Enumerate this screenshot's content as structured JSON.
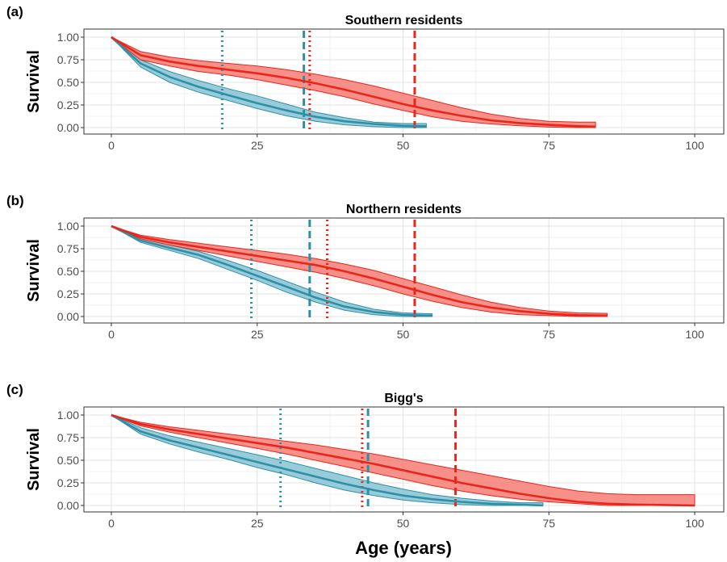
{
  "chart_data": {
    "type": "line",
    "xlabel": "Age (years)",
    "ylabel": "Survival",
    "xlim": [
      0,
      100
    ],
    "ylim": [
      0,
      1
    ],
    "xticks": [
      "0",
      "25",
      "50",
      "75",
      "100"
    ],
    "yticks": [
      "0.00",
      "0.25",
      "0.50",
      "0.75",
      "1.00"
    ],
    "grid": true,
    "colors": {
      "red": "#e8261c",
      "red_band": "#f47c74",
      "blue": "#2f8fa6",
      "blue_band": "#86c3d3"
    },
    "panels": [
      {
        "label": "(a)",
        "title": "Southern residents",
        "series": [
          {
            "color": "red",
            "x": [
              0,
              5,
              10,
              15,
              20,
              25,
              30,
              35,
              40,
              45,
              50,
              55,
              60,
              65,
              70,
              75,
              80,
              83
            ],
            "y": [
              1.0,
              0.8,
              0.73,
              0.68,
              0.64,
              0.6,
              0.55,
              0.49,
              0.42,
              0.34,
              0.26,
              0.19,
              0.13,
              0.08,
              0.05,
              0.03,
              0.015,
              0.01
            ],
            "upper": [
              1.0,
              0.84,
              0.78,
              0.74,
              0.71,
              0.68,
              0.64,
              0.59,
              0.53,
              0.46,
              0.38,
              0.3,
              0.22,
              0.15,
              0.1,
              0.07,
              0.06,
              0.06
            ],
            "lower": [
              1.0,
              0.75,
              0.68,
              0.62,
              0.58,
              0.53,
              0.47,
              0.41,
              0.34,
              0.26,
              0.19,
              0.12,
              0.07,
              0.04,
              0.02,
              0.005,
              0.0,
              0.0
            ]
          },
          {
            "color": "blue",
            "x": [
              0,
              5,
              10,
              15,
              20,
              25,
              30,
              35,
              40,
              45,
              50,
              54
            ],
            "y": [
              1.0,
              0.71,
              0.56,
              0.45,
              0.36,
              0.27,
              0.19,
              0.12,
              0.07,
              0.04,
              0.02,
              0.015
            ],
            "upper": [
              1.0,
              0.75,
              0.62,
              0.52,
              0.43,
              0.35,
              0.26,
              0.17,
              0.11,
              0.06,
              0.045,
              0.045
            ],
            "lower": [
              1.0,
              0.67,
              0.5,
              0.39,
              0.3,
              0.21,
              0.13,
              0.07,
              0.03,
              0.01,
              0.0,
              0.0
            ]
          }
        ],
        "vlines": [
          {
            "x": 19,
            "color": "blue",
            "style": "dotted"
          },
          {
            "x": 33,
            "color": "blue",
            "style": "dashed"
          },
          {
            "x": 34,
            "color": "red",
            "style": "dotted"
          },
          {
            "x": 52,
            "color": "red",
            "style": "dashed"
          }
        ]
      },
      {
        "label": "(b)",
        "title": "Northern residents",
        "series": [
          {
            "color": "red",
            "x": [
              0,
              5,
              10,
              15,
              20,
              25,
              30,
              35,
              40,
              45,
              50,
              55,
              60,
              65,
              70,
              75,
              80,
              85
            ],
            "y": [
              1.0,
              0.88,
              0.82,
              0.77,
              0.72,
              0.67,
              0.62,
              0.57,
              0.5,
              0.42,
              0.33,
              0.24,
              0.16,
              0.1,
              0.06,
              0.03,
              0.015,
              0.01
            ],
            "upper": [
              1.0,
              0.9,
              0.85,
              0.81,
              0.77,
              0.73,
              0.69,
              0.64,
              0.58,
              0.51,
              0.42,
              0.33,
              0.24,
              0.16,
              0.1,
              0.06,
              0.04,
              0.035
            ],
            "lower": [
              1.0,
              0.86,
              0.79,
              0.73,
              0.67,
              0.61,
              0.55,
              0.49,
              0.42,
              0.34,
              0.25,
              0.17,
              0.1,
              0.05,
              0.02,
              0.01,
              0.0,
              0.0
            ]
          },
          {
            "color": "blue",
            "x": [
              0,
              5,
              10,
              15,
              20,
              25,
              30,
              35,
              40,
              45,
              50,
              55
            ],
            "y": [
              1.0,
              0.84,
              0.76,
              0.68,
              0.57,
              0.45,
              0.33,
              0.21,
              0.11,
              0.05,
              0.02,
              0.01
            ],
            "upper": [
              1.0,
              0.86,
              0.79,
              0.72,
              0.62,
              0.51,
              0.39,
              0.27,
              0.16,
              0.08,
              0.04,
              0.03
            ],
            "lower": [
              1.0,
              0.82,
              0.73,
              0.64,
              0.52,
              0.4,
              0.27,
              0.16,
              0.07,
              0.02,
              0.0,
              0.0
            ]
          }
        ],
        "vlines": [
          {
            "x": 24,
            "color": "blue",
            "style": "dotted"
          },
          {
            "x": 34,
            "color": "blue",
            "style": "dashed"
          },
          {
            "x": 37,
            "color": "red",
            "style": "dotted"
          },
          {
            "x": 52,
            "color": "red",
            "style": "dashed"
          }
        ]
      },
      {
        "label": "(c)",
        "title": "Bigg's",
        "series": [
          {
            "color": "red",
            "x": [
              0,
              5,
              10,
              15,
              20,
              25,
              30,
              35,
              40,
              45,
              50,
              55,
              60,
              65,
              70,
              75,
              80,
              85,
              90,
              95,
              100
            ],
            "y": [
              1.0,
              0.9,
              0.84,
              0.79,
              0.74,
              0.69,
              0.64,
              0.58,
              0.52,
              0.46,
              0.39,
              0.32,
              0.25,
              0.19,
              0.13,
              0.08,
              0.04,
              0.02,
              0.01,
              0.005,
              0.0
            ],
            "upper": [
              1.0,
              0.92,
              0.87,
              0.83,
              0.79,
              0.75,
              0.71,
              0.67,
              0.62,
              0.57,
              0.51,
              0.45,
              0.39,
              0.33,
              0.27,
              0.21,
              0.16,
              0.13,
              0.12,
              0.12,
              0.12
            ],
            "lower": [
              1.0,
              0.88,
              0.81,
              0.75,
              0.69,
              0.63,
              0.57,
              0.5,
              0.43,
              0.36,
              0.29,
              0.22,
              0.16,
              0.11,
              0.07,
              0.04,
              0.02,
              0.0,
              0.0,
              0.0,
              0.0
            ]
          },
          {
            "color": "blue",
            "x": [
              0,
              5,
              10,
              15,
              20,
              25,
              30,
              35,
              40,
              45,
              50,
              55,
              60,
              65,
              70,
              74
            ],
            "y": [
              1.0,
              0.82,
              0.72,
              0.64,
              0.56,
              0.48,
              0.4,
              0.32,
              0.24,
              0.17,
              0.11,
              0.07,
              0.04,
              0.02,
              0.01,
              0.0
            ],
            "upper": [
              1.0,
              0.86,
              0.77,
              0.7,
              0.63,
              0.56,
              0.49,
              0.41,
              0.33,
              0.25,
              0.18,
              0.12,
              0.08,
              0.05,
              0.03,
              0.03
            ],
            "lower": [
              1.0,
              0.79,
              0.68,
              0.59,
              0.51,
              0.42,
              0.34,
              0.25,
              0.17,
              0.11,
              0.06,
              0.03,
              0.01,
              0.0,
              0.0,
              0.0
            ]
          }
        ],
        "vlines": [
          {
            "x": 29,
            "color": "blue",
            "style": "dotted"
          },
          {
            "x": 43,
            "color": "red",
            "style": "dotted"
          },
          {
            "x": 44,
            "color": "blue",
            "style": "dashed"
          },
          {
            "x": 59,
            "color": "red",
            "style": "dashed"
          }
        ]
      }
    ]
  }
}
